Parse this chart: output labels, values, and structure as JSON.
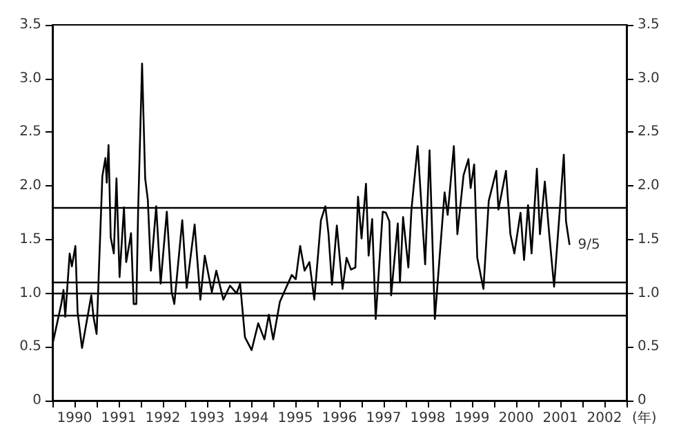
{
  "chart_data": {
    "type": "line",
    "xlabel": "(年)",
    "x": [
      1990.0,
      1990.2,
      1990.25,
      1990.29,
      1990.39,
      1990.44,
      1990.52,
      1990.57,
      1990.67,
      1990.88,
      1990.93,
      1991.0,
      1991.13,
      1991.2,
      1991.23,
      1991.27,
      1991.32,
      1991.39,
      1991.45,
      1991.52,
      1991.62,
      1991.67,
      1991.75,
      1991.78,
      1991.84,
      1991.9,
      1991.94,
      1992.03,
      1992.1,
      1992.16,
      1992.23,
      1992.35,
      1992.45,
      1992.59,
      1992.7,
      1992.76,
      1992.94,
      1993.04,
      1993.22,
      1993.35,
      1993.45,
      1993.61,
      1993.71,
      1993.87,
      1994.02,
      1994.17,
      1994.25,
      1994.36,
      1994.51,
      1994.66,
      1994.8,
      1994.9,
      1995.0,
      1995.15,
      1995.29,
      1995.42,
      1995.51,
      1995.61,
      1995.71,
      1995.82,
      1995.93,
      1996.08,
      1996.18,
      1996.25,
      1996.33,
      1996.44,
      1996.57,
      1996.66,
      1996.76,
      1996.86,
      1996.92,
      1997.0,
      1997.1,
      1997.16,
      1997.24,
      1997.32,
      1997.48,
      1997.55,
      1997.63,
      1997.67,
      1997.82,
      1997.87,
      1997.94,
      1998.06,
      1998.13,
      1998.27,
      1998.44,
      1998.54,
      1998.66,
      1998.88,
      1998.95,
      1999.09,
      1999.17,
      1999.31,
      1999.42,
      1999.47,
      1999.55,
      1999.62,
      1999.76,
      1999.88,
      2000.05,
      2000.1,
      2000.27,
      2000.37,
      2000.46,
      2000.6,
      2000.68,
      2000.77,
      2000.85,
      2000.97,
      2001.04,
      2001.15,
      2001.25,
      2001.36,
      2001.47,
      2001.58,
      2001.63,
      2001.71
    ],
    "values": [
      0.52,
      0.9,
      1.03,
      0.78,
      1.37,
      1.25,
      1.44,
      0.82,
      0.49,
      0.98,
      0.78,
      0.62,
      2.09,
      2.26,
      2.03,
      2.38,
      1.52,
      1.37,
      2.07,
      1.15,
      1.8,
      1.29,
      1.48,
      1.56,
      0.9,
      0.9,
      1.76,
      3.14,
      2.07,
      1.87,
      1.21,
      1.81,
      1.09,
      1.76,
      1.01,
      0.9,
      1.68,
      1.05,
      1.64,
      0.94,
      1.35,
      1.01,
      1.21,
      0.94,
      1.07,
      1.0,
      1.09,
      0.59,
      0.47,
      0.72,
      0.57,
      0.8,
      0.57,
      0.92,
      1.05,
      1.17,
      1.13,
      1.44,
      1.21,
      1.29,
      0.94,
      1.68,
      1.81,
      1.56,
      1.08,
      1.63,
      1.04,
      1.33,
      1.22,
      1.24,
      1.9,
      1.51,
      2.02,
      1.35,
      1.69,
      0.76,
      1.76,
      1.75,
      1.67,
      0.98,
      1.65,
      1.1,
      1.71,
      1.24,
      1.78,
      2.37,
      1.27,
      2.33,
      0.76,
      1.94,
      1.73,
      2.37,
      1.55,
      2.1,
      2.25,
      1.98,
      2.2,
      1.33,
      1.04,
      1.86,
      2.14,
      1.78,
      2.14,
      1.55,
      1.37,
      1.75,
      1.31,
      1.82,
      1.37,
      2.16,
      1.55,
      2.04,
      1.55,
      1.06,
      1.67,
      2.29,
      1.67,
      1.45
    ],
    "color": "#000000",
    "marker": "none",
    "line_style": "solid",
    "xlim": [
      1990,
      2003
    ],
    "xticks": [
      {
        "value": 1990,
        "label": null
      },
      {
        "value": 1990.5,
        "label": "1990"
      },
      {
        "value": 1991,
        "label": null
      },
      {
        "value": 1991.5,
        "label": "1991"
      },
      {
        "value": 1992,
        "label": null
      },
      {
        "value": 1992.5,
        "label": "1992"
      },
      {
        "value": 1993,
        "label": null
      },
      {
        "value": 1993.5,
        "label": "1993"
      },
      {
        "value": 1994,
        "label": null
      },
      {
        "value": 1994.5,
        "label": "1994"
      },
      {
        "value": 1995,
        "label": null
      },
      {
        "value": 1995.5,
        "label": "1995"
      },
      {
        "value": 1996,
        "label": null
      },
      {
        "value": 1996.5,
        "label": "1996"
      },
      {
        "value": 1997,
        "label": null
      },
      {
        "value": 1997.5,
        "label": "1997"
      },
      {
        "value": 1998,
        "label": null
      },
      {
        "value": 1998.5,
        "label": "1998"
      },
      {
        "value": 1999,
        "label": null
      },
      {
        "value": 1999.5,
        "label": "1999"
      },
      {
        "value": 2000,
        "label": null
      },
      {
        "value": 2000.5,
        "label": "2000"
      },
      {
        "value": 2001,
        "label": null
      },
      {
        "value": 2001.5,
        "label": "2001"
      },
      {
        "value": 2002,
        "label": null
      },
      {
        "value": 2002.5,
        "label": "2002"
      },
      {
        "value": 2003,
        "label": null
      }
    ],
    "ylim": [
      0,
      3.5
    ],
    "yticks": [
      0,
      0.5,
      {
        "value": 1,
        "label": "1.0"
      },
      1.5,
      {
        "value": 2,
        "label": "2.0"
      },
      2.5,
      {
        "value": 3,
        "label": "3.0"
      },
      3.5
    ],
    "y2lim": [
      0,
      3.5
    ],
    "y2ticks": [
      0,
      0.5,
      {
        "value": 1,
        "label": "1.0"
      },
      1.5,
      {
        "value": 2,
        "label": "2.0"
      },
      2.5,
      {
        "value": 3,
        "label": "3.0"
      },
      3.5
    ],
    "ref_lines": [
      {
        "axis": "y",
        "value": 1.8
      },
      {
        "axis": "y",
        "value": 1.1
      },
      {
        "axis": "y",
        "value": 1.0
      },
      {
        "axis": "y",
        "value": 0.8
      }
    ],
    "annotations": [
      {
        "text": "9/5",
        "x": 2001.71,
        "y": 1.45
      }
    ],
    "grid": false
  }
}
